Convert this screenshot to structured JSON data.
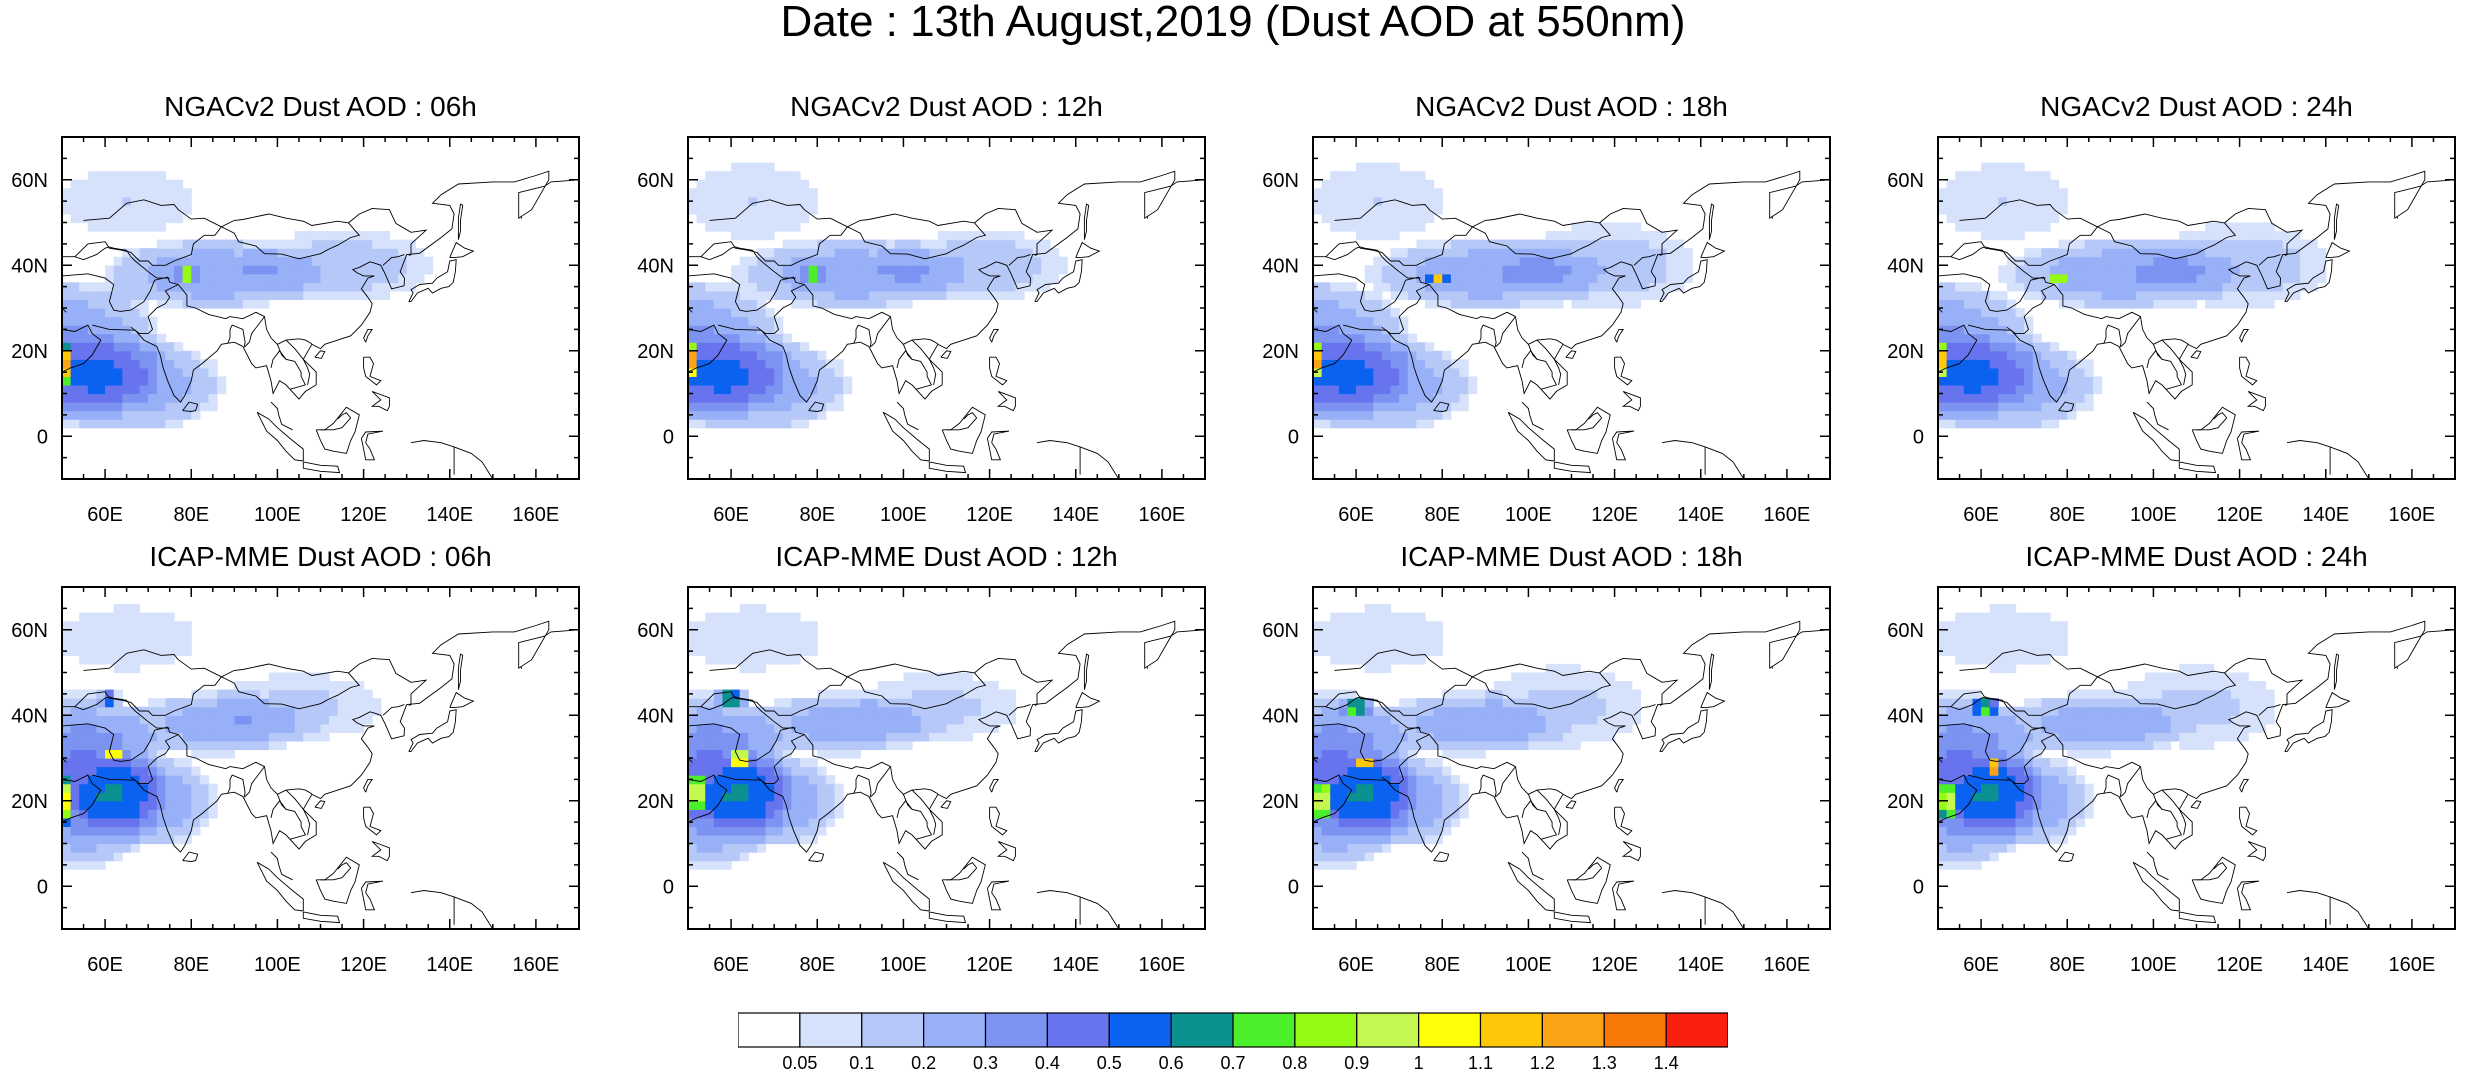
{
  "title": "Date : 13th August,2019 (Dust AOD at 550nm)",
  "panels": [
    {
      "title": "NGACv2 Dust AOD : 06h",
      "model": "ngac",
      "hour": 6
    },
    {
      "title": "NGACv2 Dust AOD : 12h",
      "model": "ngac",
      "hour": 12
    },
    {
      "title": "NGACv2 Dust AOD : 18h",
      "model": "ngac",
      "hour": 18
    },
    {
      "title": "NGACv2 Dust AOD : 24h",
      "model": "ngac",
      "hour": 24
    },
    {
      "title": "ICAP-MME Dust AOD : 06h",
      "model": "icap",
      "hour": 6
    },
    {
      "title": "ICAP-MME Dust AOD : 12h",
      "model": "icap",
      "hour": 12
    },
    {
      "title": "ICAP-MME Dust AOD : 18h",
      "model": "icap",
      "hour": 18
    },
    {
      "title": "ICAP-MME Dust AOD : 24h",
      "model": "icap",
      "hour": 24
    }
  ],
  "axes": {
    "lon_range": [
      50,
      170
    ],
    "lat_range": [
      -10,
      70
    ],
    "x_ticks": [
      60,
      80,
      100,
      120,
      140,
      160
    ],
    "x_tick_labels": [
      "60E",
      "80E",
      "100E",
      "120E",
      "140E",
      "160E"
    ],
    "y_ticks": [
      0,
      20,
      40,
      60
    ],
    "y_tick_labels": [
      "0",
      "20N",
      "40N",
      "60N"
    ]
  },
  "colorbar": {
    "colors": [
      "#ffffff",
      "#d6e2fb",
      "#b6c8f8",
      "#98b0f7",
      "#7d93f2",
      "#6873ee",
      "#0b62f1",
      "#0b918f",
      "#4cf02a",
      "#95fb14",
      "#c4f851",
      "#ffff08",
      "#fec808",
      "#fba317",
      "#f87808",
      "#f9200f"
    ],
    "labels": [
      "0.05",
      "0.1",
      "0.2",
      "0.3",
      "0.4",
      "0.5",
      "0.6",
      "0.7",
      "0.8",
      "0.9",
      "1",
      "1.1",
      "1.2",
      "1.3",
      "1.4"
    ]
  },
  "chart_data": {
    "type": "heatmap",
    "title": "Date : 13th August,2019 (Dust AOD at 550nm)",
    "variable": "Dust AOD at 550nm",
    "levels": [
      0.05,
      0.1,
      0.2,
      0.3,
      0.4,
      0.5,
      0.6,
      0.7,
      0.8,
      0.9,
      1,
      1.1,
      1.2,
      1.3,
      1.4
    ],
    "series": [
      {
        "name": "NGACv2 Dust AOD : 06h",
        "plumes": [
          {
            "lon": 50,
            "lat": 20,
            "rlon": 26,
            "rlat": 18,
            "value": 0.35
          },
          {
            "lon": 65,
            "lat": 12,
            "rlon": 25,
            "rlat": 12,
            "value": 0.3
          },
          {
            "lon": 85,
            "lat": 38,
            "rlon": 28,
            "rlat": 9,
            "value": 0.3
          },
          {
            "lon": 115,
            "lat": 40,
            "rlon": 25,
            "rlat": 10,
            "value": 0.15
          },
          {
            "lon": 65,
            "lat": 55,
            "rlon": 22,
            "rlat": 10,
            "value": 0.1
          },
          {
            "lon": 79,
            "lat": 38,
            "rlon": 3,
            "rlat": 1.5,
            "value": 0.95
          },
          {
            "lon": 51,
            "lat": 17,
            "rlon": 2,
            "rlat": 5,
            "value": 0.8
          }
        ]
      },
      {
        "name": "NGACv2 Dust AOD : 12h",
        "plumes": [
          {
            "lon": 50,
            "lat": 20,
            "rlon": 26,
            "rlat": 18,
            "value": 0.35
          },
          {
            "lon": 65,
            "lat": 12,
            "rlon": 25,
            "rlat": 12,
            "value": 0.3
          },
          {
            "lon": 88,
            "lat": 38,
            "rlon": 30,
            "rlat": 9,
            "value": 0.3
          },
          {
            "lon": 118,
            "lat": 40,
            "rlon": 25,
            "rlat": 10,
            "value": 0.15
          },
          {
            "lon": 65,
            "lat": 55,
            "rlon": 22,
            "rlat": 12,
            "value": 0.1
          },
          {
            "lon": 79,
            "lat": 38,
            "rlon": 3,
            "rlat": 1.5,
            "value": 0.95
          },
          {
            "lon": 51,
            "lat": 18,
            "rlon": 2,
            "rlat": 5,
            "value": 0.8
          }
        ]
      },
      {
        "name": "NGACv2 Dust AOD : 18h",
        "plumes": [
          {
            "lon": 50,
            "lat": 20,
            "rlon": 26,
            "rlat": 18,
            "value": 0.35
          },
          {
            "lon": 65,
            "lat": 12,
            "rlon": 25,
            "rlat": 12,
            "value": 0.3
          },
          {
            "lon": 90,
            "lat": 38,
            "rlon": 30,
            "rlat": 9,
            "value": 0.3
          },
          {
            "lon": 118,
            "lat": 40,
            "rlon": 25,
            "rlat": 12,
            "value": 0.15
          },
          {
            "lon": 65,
            "lat": 55,
            "rlon": 22,
            "rlat": 12,
            "value": 0.1
          },
          {
            "lon": 79,
            "lat": 37,
            "rlon": 2.5,
            "rlat": 1.5,
            "value": 0.85
          },
          {
            "lon": 51,
            "lat": 18,
            "rlon": 2,
            "rlat": 5,
            "value": 0.75
          }
        ]
      },
      {
        "name": "NGACv2 Dust AOD : 24h",
        "plumes": [
          {
            "lon": 50,
            "lat": 20,
            "rlon": 26,
            "rlat": 18,
            "value": 0.35
          },
          {
            "lon": 65,
            "lat": 12,
            "rlon": 25,
            "rlat": 12,
            "value": 0.3
          },
          {
            "lon": 92,
            "lat": 38,
            "rlon": 30,
            "rlat": 9,
            "value": 0.3
          },
          {
            "lon": 120,
            "lat": 40,
            "rlon": 25,
            "rlat": 12,
            "value": 0.15
          },
          {
            "lon": 65,
            "lat": 55,
            "rlon": 22,
            "rlat": 12,
            "value": 0.1
          },
          {
            "lon": 78,
            "lat": 37,
            "rlon": 2,
            "rlat": 1.5,
            "value": 0.8
          },
          {
            "lon": 51,
            "lat": 18,
            "rlon": 2,
            "rlat": 5,
            "value": 0.7
          }
        ]
      },
      {
        "name": "ICAP-MME Dust AOD : 06h",
        "plumes": [
          {
            "lon": 55,
            "lat": 25,
            "rlon": 20,
            "rlat": 22,
            "value": 0.45
          },
          {
            "lon": 70,
            "lat": 20,
            "rlon": 18,
            "rlat": 12,
            "value": 0.3
          },
          {
            "lon": 85,
            "lat": 38,
            "rlon": 25,
            "rlat": 8,
            "value": 0.25
          },
          {
            "lon": 105,
            "lat": 42,
            "rlon": 25,
            "rlat": 10,
            "value": 0.12
          },
          {
            "lon": 65,
            "lat": 58,
            "rlon": 22,
            "rlat": 10,
            "value": 0.1
          },
          {
            "lon": 62,
            "lat": 31,
            "rlon": 2,
            "rlat": 2,
            "value": 0.95
          },
          {
            "lon": 61,
            "lat": 44,
            "rlon": 3,
            "rlat": 1.5,
            "value": 0.8
          },
          {
            "lon": 51,
            "lat": 20,
            "rlon": 2,
            "rlat": 6,
            "value": 0.7
          }
        ]
      },
      {
        "name": "ICAP-MME Dust AOD : 12h",
        "plumes": [
          {
            "lon": 55,
            "lat": 25,
            "rlon": 20,
            "rlat": 22,
            "value": 0.45
          },
          {
            "lon": 70,
            "lat": 20,
            "rlon": 18,
            "rlat": 12,
            "value": 0.3
          },
          {
            "lon": 85,
            "lat": 38,
            "rlon": 25,
            "rlat": 8,
            "value": 0.25
          },
          {
            "lon": 108,
            "lat": 42,
            "rlon": 25,
            "rlat": 10,
            "value": 0.12
          },
          {
            "lon": 65,
            "lat": 58,
            "rlon": 22,
            "rlat": 10,
            "value": 0.1
          },
          {
            "lon": 62,
            "lat": 30,
            "rlon": 2,
            "rlat": 2.5,
            "value": 1.05
          },
          {
            "lon": 60,
            "lat": 44,
            "rlon": 4,
            "rlat": 2,
            "value": 0.8
          },
          {
            "lon": 52,
            "lat": 22,
            "rlon": 2,
            "rlat": 6,
            "value": 0.7
          }
        ]
      },
      {
        "name": "ICAP-MME Dust AOD : 18h",
        "plumes": [
          {
            "lon": 55,
            "lat": 25,
            "rlon": 20,
            "rlat": 22,
            "value": 0.45
          },
          {
            "lon": 70,
            "lat": 20,
            "rlon": 18,
            "rlat": 12,
            "value": 0.3
          },
          {
            "lon": 85,
            "lat": 38,
            "rlon": 25,
            "rlat": 8,
            "value": 0.25
          },
          {
            "lon": 108,
            "lat": 42,
            "rlon": 25,
            "rlat": 12,
            "value": 0.12
          },
          {
            "lon": 65,
            "lat": 58,
            "rlon": 22,
            "rlat": 10,
            "value": 0.1
          },
          {
            "lon": 62,
            "lat": 29,
            "rlon": 2,
            "rlat": 2,
            "value": 0.95
          },
          {
            "lon": 60,
            "lat": 42,
            "rlon": 4,
            "rlat": 2,
            "value": 0.75
          },
          {
            "lon": 52,
            "lat": 20,
            "rlon": 2,
            "rlat": 6,
            "value": 0.7
          }
        ]
      },
      {
        "name": "ICAP-MME Dust AOD : 24h",
        "plumes": [
          {
            "lon": 55,
            "lat": 25,
            "rlon": 20,
            "rlat": 22,
            "value": 0.45
          },
          {
            "lon": 70,
            "lat": 20,
            "rlon": 18,
            "rlat": 12,
            "value": 0.3
          },
          {
            "lon": 85,
            "lat": 38,
            "rlon": 25,
            "rlat": 8,
            "value": 0.25
          },
          {
            "lon": 110,
            "lat": 42,
            "rlon": 25,
            "rlat": 12,
            "value": 0.12
          },
          {
            "lon": 65,
            "lat": 58,
            "rlon": 22,
            "rlat": 10,
            "value": 0.1
          },
          {
            "lon": 63,
            "lat": 28,
            "rlon": 2,
            "rlat": 2,
            "value": 0.9
          },
          {
            "lon": 61,
            "lat": 42,
            "rlon": 4,
            "rlat": 2,
            "value": 0.75
          },
          {
            "lon": 52,
            "lat": 20,
            "rlon": 2,
            "rlat": 6,
            "value": 0.65
          }
        ]
      }
    ]
  }
}
